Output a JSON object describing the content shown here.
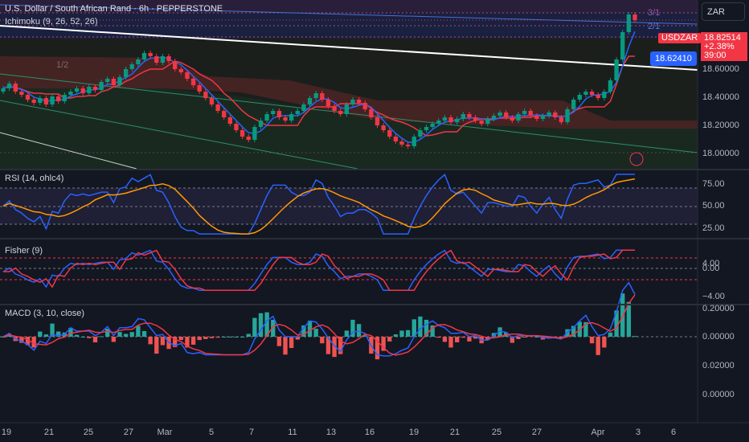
{
  "header": {
    "symbol_title": "U.S. Dollar / South African Rand · 6h · PEPPERSTONE",
    "ichimoku_title": "Ichimoku (9, 26, 52, 26)",
    "currency": "ZAR"
  },
  "price_tag": {
    "symbol": "USDZAR",
    "price": "18.82514",
    "change": "+2.38%",
    "countdown": "39:00"
  },
  "trendline_tag": "18.62410",
  "fib_labels": {
    "a": "3/1",
    "b": "2/1",
    "c": "1/2"
  },
  "panes": {
    "rsi": {
      "title": "RSI (14, ohlc4)",
      "ticks": [
        "75.00",
        "50.00",
        "25.00"
      ]
    },
    "fisher": {
      "title": "Fisher (9)",
      "ticks": [
        "4.00",
        "0.00",
        "−4.00"
      ]
    },
    "macd": {
      "title": "MACD (3, 10, close)",
      "ticks": [
        "0.20000",
        "0.00000",
        "0.02000",
        "0.00000"
      ]
    }
  },
  "price_axis": [
    "18.60000",
    "18.40000",
    "18.20000",
    "18.00000"
  ],
  "date_axis": [
    "19",
    "21",
    "25",
    "27",
    "Mar",
    "5",
    "7",
    "11",
    "13",
    "16",
    "19",
    "21",
    "25",
    "27",
    "Apr",
    "3",
    "6"
  ],
  "chart_data": {
    "type": "candlestick",
    "symbol": "USDZAR",
    "timeframe": "6h",
    "ylim": [
      17.9,
      18.9
    ],
    "last_price": 18.82514,
    "candles_close": [
      18.4,
      18.43,
      18.38,
      18.36,
      18.33,
      18.31,
      18.34,
      18.3,
      18.35,
      18.32,
      18.36,
      18.38,
      18.4,
      18.37,
      18.41,
      18.39,
      18.44,
      18.46,
      18.42,
      18.47,
      18.52,
      18.55,
      18.58,
      18.62,
      18.6,
      18.56,
      18.6,
      18.57,
      18.52,
      18.5,
      18.46,
      18.42,
      18.38,
      18.34,
      18.3,
      18.26,
      18.22,
      18.18,
      18.14,
      18.1,
      18.08,
      18.16,
      18.2,
      18.24,
      18.26,
      18.22,
      18.2,
      18.24,
      18.26,
      18.3,
      18.34,
      18.37,
      18.33,
      18.29,
      18.26,
      18.24,
      18.3,
      18.33,
      18.31,
      18.27,
      18.22,
      18.17,
      18.14,
      18.1,
      18.07,
      18.05,
      18.04,
      18.1,
      18.14,
      18.16,
      18.18,
      18.2,
      18.22,
      18.19,
      18.21,
      18.24,
      18.22,
      18.2,
      18.18,
      18.21,
      18.23,
      18.25,
      18.22,
      18.2,
      18.24,
      18.26,
      18.23,
      18.21,
      18.23,
      18.25,
      18.22,
      18.19,
      18.27,
      18.33,
      18.36,
      18.38,
      18.36,
      18.34,
      18.38,
      18.45,
      18.58,
      18.75,
      18.86,
      18.825
    ],
    "rsi_ticks": [
      75,
      50,
      25
    ],
    "fisher_ticks": [
      4,
      0,
      -4
    ],
    "macd_ticks": [
      0.2,
      0.0,
      0.02,
      0.0
    ]
  }
}
